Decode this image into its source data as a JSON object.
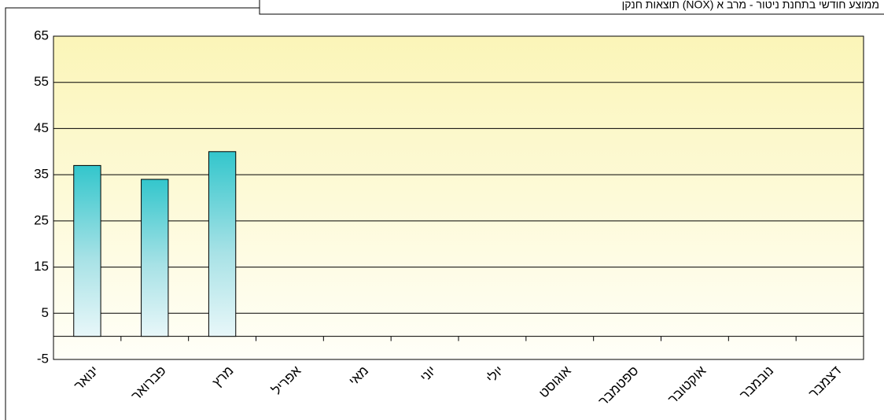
{
  "chart_data": {
    "type": "bar",
    "title": "תוצאות חנקן (NOX) ממוצע חודשי בתחנת ניטור - מרב א",
    "categories": [
      "ינואר",
      "פברואר",
      "מרץ",
      "אפריל",
      "מאי",
      "יוני",
      "יולי",
      "אוגוסט",
      "ספטמבר",
      "אוקטובר",
      "נובמבר",
      "דצמבר"
    ],
    "values": [
      37,
      34,
      40,
      null,
      null,
      null,
      null,
      null,
      null,
      null,
      null,
      null
    ],
    "color": "#33c6cc",
    "ylim": [
      -5,
      65
    ],
    "yticks": [
      -5,
      5,
      15,
      25,
      35,
      45,
      55,
      65
    ],
    "grid": true
  }
}
